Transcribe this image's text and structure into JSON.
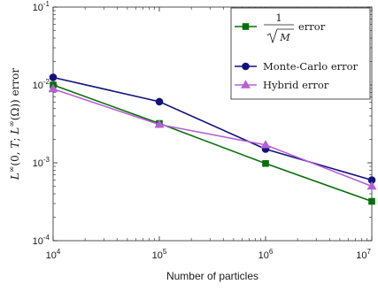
{
  "chart_data": {
    "type": "line",
    "xscale": "log",
    "yscale": "log",
    "xlim": [
      10000,
      10000000
    ],
    "ylim": [
      0.0001,
      0.1
    ],
    "xlabel": "Number of particles",
    "ylabel": "L^∞(0,T;L^∞(Ω)) error",
    "x_ticks": [
      {
        "base": "10",
        "exp": "4"
      },
      {
        "base": "10",
        "exp": "5"
      },
      {
        "base": "10",
        "exp": "6"
      },
      {
        "base": "10",
        "exp": "7"
      }
    ],
    "y_ticks": [
      {
        "base": "10",
        "exp": "-4"
      },
      {
        "base": "10",
        "exp": "-3"
      },
      {
        "base": "10",
        "exp": "-2"
      },
      {
        "base": "10",
        "exp": "-1"
      }
    ],
    "x": [
      10000,
      100000,
      1000000,
      10000000
    ],
    "series": [
      {
        "name": "1/√M error",
        "color": "#0b6e0b",
        "marker": "square",
        "values": [
          0.01,
          0.0032,
          0.00098,
          0.00032
        ]
      },
      {
        "name": "Monte-Carlo error",
        "color": "#13127d",
        "marker": "circle",
        "values": [
          0.0125,
          0.0061,
          0.0015,
          0.0006
        ]
      },
      {
        "name": "Hybrid error",
        "color": "#b660d6",
        "marker": "triangle",
        "values": [
          0.0089,
          0.0031,
          0.0017,
          0.0005
        ]
      }
    ],
    "legend": {
      "position": "top-right",
      "entries": [
        {
          "numerator": "1",
          "radicand": "M",
          "suffix": "error"
        },
        {
          "text": "Monte-Carlo error"
        },
        {
          "text": "Hybrid error"
        }
      ]
    },
    "grid": false
  }
}
